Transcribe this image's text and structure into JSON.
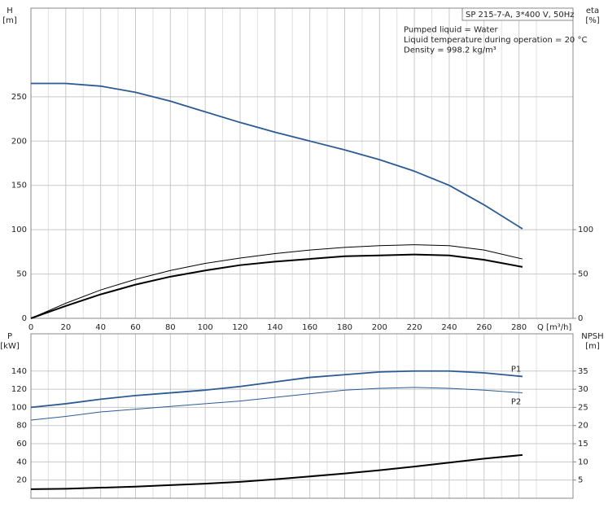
{
  "chart_data": [
    {
      "type": "line",
      "xlabel": "Q [m³/h]",
      "ylabel": "H",
      "yunit": "[m]",
      "y2label": "eta",
      "y2unit": "[%]",
      "annotations": [
        "SP 215-7-A, 3*400 V, 50Hz",
        "Pumped liquid = Water",
        "Liquid temperature during operation = 20 °C",
        "Density = 998.2 kg/m³"
      ],
      "x": [
        0,
        20,
        40,
        60,
        80,
        100,
        120,
        140,
        160,
        180,
        200,
        220,
        240,
        260,
        282
      ],
      "xlim": [
        0,
        311
      ],
      "xticks": [
        0,
        20,
        40,
        60,
        80,
        100,
        120,
        140,
        160,
        180,
        200,
        220,
        240,
        260,
        280
      ],
      "ylim": [
        0,
        350
      ],
      "yticks": [
        0,
        50,
        100,
        150,
        200,
        250
      ],
      "y2lim": [
        0,
        350
      ],
      "y2ticks": [
        0,
        50,
        100
      ],
      "grid": true,
      "series": [
        {
          "color": "#2b5a94",
          "width": 1.8,
          "values": [
            265,
            265,
            262,
            255,
            245,
            233,
            221,
            210,
            200,
            190,
            179,
            166,
            150,
            128,
            101
          ]
        },
        {
          "color": "#000000",
          "width": 1,
          "axis": "y2",
          "values": [
            0,
            17,
            32,
            44,
            54,
            62,
            68,
            73,
            77,
            80,
            82,
            83,
            82,
            77,
            67
          ]
        },
        {
          "color": "#000000",
          "width": 2,
          "axis": "y2",
          "values": [
            0,
            14,
            27,
            38,
            47,
            54,
            60,
            64,
            67,
            70,
            71,
            72,
            71,
            66,
            58
          ]
        }
      ]
    },
    {
      "type": "line",
      "ylabel": "P",
      "yunit": "[kW]",
      "y2label": "NPSH",
      "y2unit": "[m]",
      "x": [
        0,
        20,
        40,
        60,
        80,
        100,
        120,
        140,
        160,
        180,
        200,
        220,
        240,
        260,
        282
      ],
      "xlim": [
        0,
        311
      ],
      "xticks": [
        0,
        20,
        40,
        60,
        80,
        100,
        120,
        140,
        160,
        180,
        200,
        220,
        240,
        260,
        280
      ],
      "ylim": [
        0,
        181
      ],
      "yticks": [
        20,
        40,
        60,
        80,
        100,
        120,
        140
      ],
      "y2lim": [
        0,
        45.25
      ],
      "y2ticks": [
        5,
        10,
        15,
        20,
        25,
        30,
        35
      ],
      "grid": true,
      "series": [
        {
          "name": "P1",
          "color": "#2b5a94",
          "width": 1.8,
          "values": [
            100,
            104,
            109,
            113,
            116,
            119,
            123,
            128,
            133,
            136,
            139,
            140,
            140,
            138,
            134
          ]
        },
        {
          "name": "P2",
          "color": "#2b5a94",
          "width": 1,
          "values": [
            86,
            90,
            95,
            98,
            101,
            104,
            107,
            111,
            115,
            119,
            121,
            122,
            121,
            119,
            116
          ]
        },
        {
          "color": "#000000",
          "width": 2,
          "axis": "y2",
          "values": [
            2.5,
            2.6,
            2.9,
            3.2,
            3.6,
            4.0,
            4.5,
            5.2,
            6.0,
            6.8,
            7.7,
            8.7,
            9.8,
            10.9,
            11.9
          ]
        }
      ]
    }
  ]
}
